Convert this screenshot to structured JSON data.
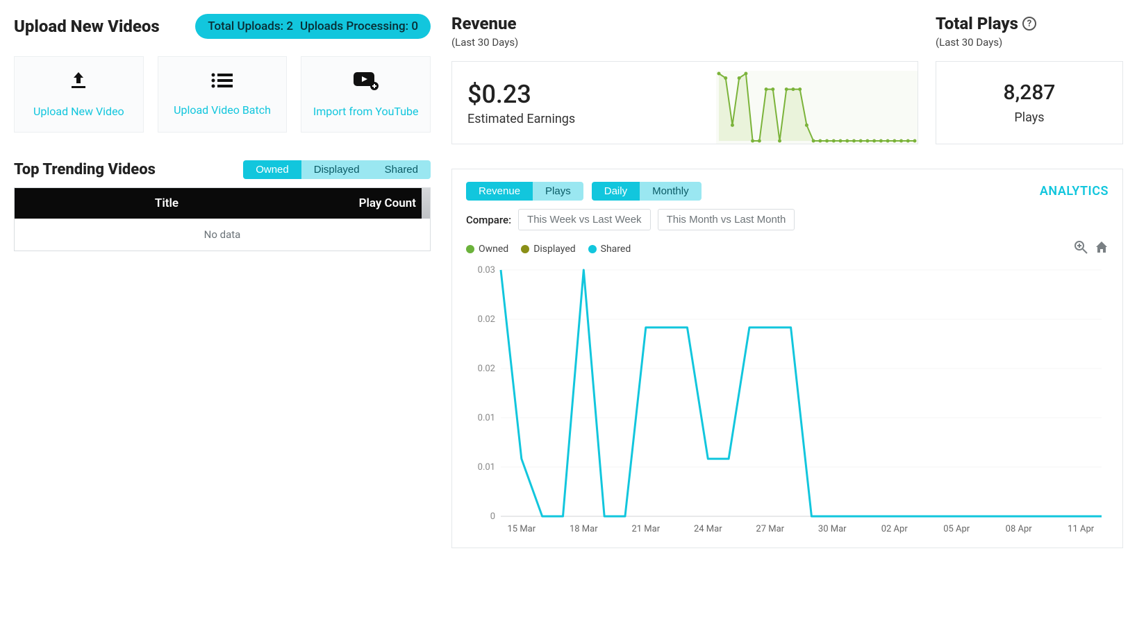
{
  "upload": {
    "title": "Upload New Videos",
    "stats": {
      "total_uploads_label": "Total Uploads:",
      "total_uploads_value": "2",
      "processing_label": "Uploads Processing:",
      "processing_value": "0"
    },
    "cards": [
      {
        "label": "Upload New Video",
        "icon": "upload"
      },
      {
        "label": "Upload Video Batch",
        "icon": "list"
      },
      {
        "label": "Import from YouTube",
        "icon": "youtube"
      }
    ]
  },
  "trending": {
    "title": "Top Trending Videos",
    "tabs": [
      "Owned",
      "Displayed",
      "Shared"
    ],
    "active_tab": 0,
    "columns": [
      "Title",
      "Play Count"
    ],
    "no_data": "No data"
  },
  "revenue": {
    "title": "Revenue",
    "subtitle": "(Last 30 Days)",
    "amount": "$0.23",
    "desc": "Estimated Earnings",
    "sparkline": {
      "color": "#7bb33a",
      "fill": "#eaf3db",
      "values": [
        0.03,
        0.028,
        0.007,
        0.028,
        0.03,
        0.0,
        0.0,
        0.023,
        0.023,
        0.0,
        0.023,
        0.023,
        0.023,
        0.007,
        0.0,
        0.0,
        0.0,
        0.0,
        0.0,
        0.0,
        0.0,
        0.0,
        0.0,
        0.0,
        0.0,
        0.0,
        0.0,
        0.0,
        0.0,
        0.0
      ],
      "ymax": 0.03
    }
  },
  "plays": {
    "title": "Total Plays",
    "subtitle": "(Last 30 Days)",
    "value": "8,287",
    "label": "Plays"
  },
  "analytics": {
    "link_label": "ANALYTICS",
    "metric_tabs": [
      "Revenue",
      "Plays"
    ],
    "metric_active": 0,
    "period_tabs": [
      "Daily",
      "Monthly"
    ],
    "period_active": 0,
    "compare_label": "Compare:",
    "compare_options": [
      "This Week vs Last Week",
      "This Month vs Last Month"
    ],
    "legend": [
      {
        "label": "Owned",
        "color": "#6bb23b"
      },
      {
        "label": "Displayed",
        "color": "#8a8f17"
      },
      {
        "label": "Shared",
        "color": "#12c6dd"
      }
    ],
    "chart": {
      "type": "line",
      "line_color": "#12c6dd",
      "line_width": 3,
      "background_color": "#ffffff",
      "grid_color": "#f4f5f6",
      "ylabel_color": "#888888",
      "xlabel_color": "#666666",
      "label_fontsize": 13,
      "yticks": [
        0,
        0.01,
        0.01,
        0.02,
        0.02,
        0.03
      ],
      "ymax": 0.03,
      "x_labels": [
        "15 Mar",
        "18 Mar",
        "21 Mar",
        "24 Mar",
        "27 Mar",
        "30 Mar",
        "02 Apr",
        "05 Apr",
        "08 Apr",
        "11 Apr"
      ],
      "x_count": 30,
      "values": [
        0.03,
        0.007,
        0.0,
        0.0,
        0.03,
        0.0,
        0.0,
        0.023,
        0.023,
        0.023,
        0.007,
        0.007,
        0.023,
        0.023,
        0.023,
        0.0,
        0.0,
        0.0,
        0.0,
        0.0,
        0.0,
        0.0,
        0.0,
        0.0,
        0.0,
        0.0,
        0.0,
        0.0,
        0.0,
        0.0
      ]
    }
  },
  "colors": {
    "accent": "#12c6dd",
    "accent_light": "#9ae7f1"
  }
}
